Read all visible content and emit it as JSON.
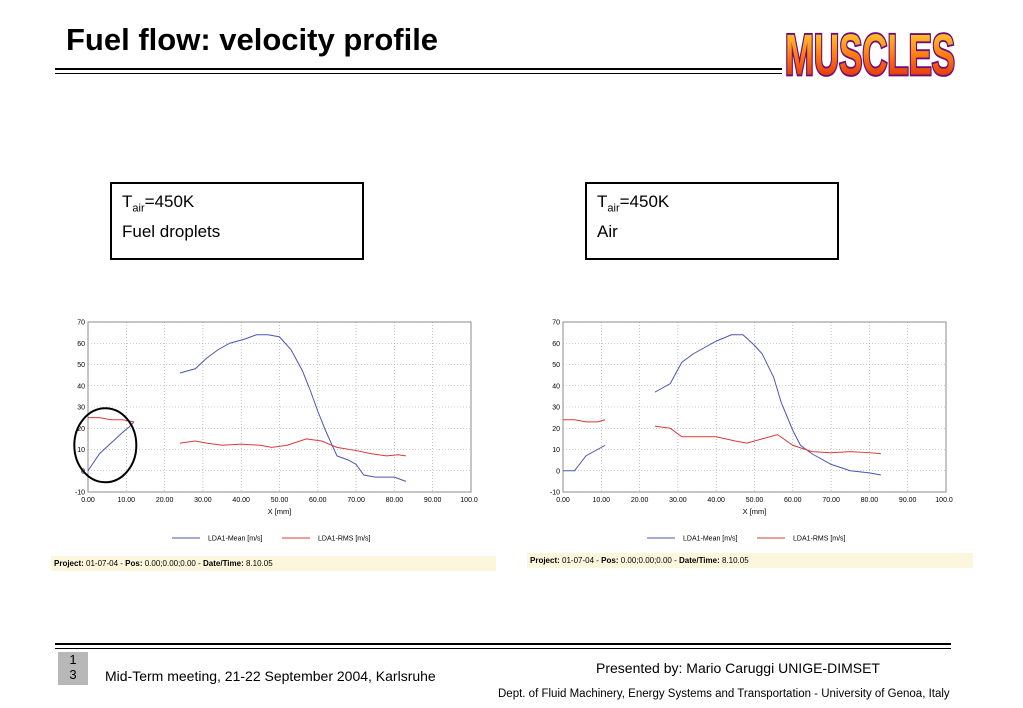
{
  "slide": {
    "title": "Fuel flow: velocity profile",
    "logo_text": "MUSCLES",
    "page_number": "13",
    "footer_left": "Mid-Term meeting, 21-22 September 2004, Karlsruhe",
    "footer_right_1": "Presented by: Mario Caruggi  UNIGE-DIMSET",
    "footer_right_2": "Dept. of Fluid Machinery, Energy Systems and Transportation - University of Genoa, Italy"
  },
  "boxes": [
    {
      "t": "T",
      "sub": "air",
      "val": "=450K",
      "line2": "Fuel droplets"
    },
    {
      "t": "T",
      "sub": "air",
      "val": "=450K",
      "line2": "Air"
    }
  ],
  "project_bars": [
    {
      "project_label": "Project:",
      "project": " 01-07-04 - ",
      "pos_label": "Pos:",
      "pos": " 0.00;0.00;0.00 - ",
      "date_label": "Date/Time:",
      "date": " 8.10.05"
    },
    {
      "project_label": "Project:",
      "project": " 01-07-04 - ",
      "pos_label": "Pos:",
      "pos": " 0.00;0.00;0.00 - ",
      "date_label": "Date/Time:",
      "date": " 8.10.05"
    }
  ],
  "colors": {
    "mean": "#4a55b4",
    "rms": "#d83a3a",
    "grid": "#9a9a9a",
    "circle": "#000000"
  },
  "chart_data": [
    {
      "type": "line",
      "xlabel": "X [mm]",
      "xlim": [
        0,
        100
      ],
      "ylim": [
        -10,
        70
      ],
      "x_ticks": [
        "0.00",
        "10.00",
        "20.00",
        "30.00",
        "40.00",
        "50.00",
        "60.00",
        "70.00",
        "80.00",
        "90.00",
        "100.00"
      ],
      "y_ticks": [
        "-10",
        "0",
        "10",
        "20",
        "30",
        "40",
        "50",
        "60",
        "70"
      ],
      "grid": true,
      "legend_position": "bottom",
      "annotation": "circle around 0-13 mm region",
      "series": [
        {
          "name": "LDA1-Mean [m/s]",
          "segments": [
            [
              [
                0,
                0
              ],
              [
                3,
                8
              ],
              [
                6,
                13
              ],
              [
                9,
                18
              ],
              [
                11,
                21
              ],
              [
                12,
                23
              ]
            ],
            [
              [
                24,
                46
              ],
              [
                28,
                48
              ],
              [
                31,
                53
              ],
              [
                34,
                57
              ],
              [
                37,
                60
              ],
              [
                41,
                62
              ],
              [
                44,
                64
              ],
              [
                47,
                64
              ],
              [
                50,
                63
              ],
              [
                53,
                57
              ],
              [
                56,
                47
              ],
              [
                58,
                38
              ],
              [
                60,
                28
              ],
              [
                62,
                19
              ],
              [
                65,
                7
              ],
              [
                68,
                5
              ],
              [
                70,
                3
              ],
              [
                72,
                -2
              ],
              [
                75,
                -3
              ],
              [
                80,
                -3
              ],
              [
                83,
                -5
              ]
            ]
          ]
        },
        {
          "name": "LDA1-RMS [m/s]",
          "segments": [
            [
              [
                0,
                25
              ],
              [
                3,
                25
              ],
              [
                6,
                24
              ],
              [
                9,
                24
              ],
              [
                12,
                23
              ]
            ],
            [
              [
                24,
                13
              ],
              [
                28,
                14
              ],
              [
                31,
                13
              ],
              [
                35,
                12
              ],
              [
                40,
                12.5
              ],
              [
                45,
                12
              ],
              [
                48,
                11
              ],
              [
                52,
                12
              ],
              [
                57,
                15
              ],
              [
                61,
                14
              ],
              [
                65,
                11
              ],
              [
                70,
                9.5
              ],
              [
                74,
                8
              ],
              [
                78,
                7
              ],
              [
                81,
                7.5
              ],
              [
                83,
                7
              ]
            ]
          ]
        }
      ]
    },
    {
      "type": "line",
      "xlabel": "X [mm]",
      "xlim": [
        0,
        100
      ],
      "ylim": [
        -10,
        70
      ],
      "x_ticks": [
        "0.00",
        "10.00",
        "20.00",
        "30.00",
        "40.00",
        "50.00",
        "60.00",
        "70.00",
        "80.00",
        "90.00",
        "100.00"
      ],
      "y_ticks": [
        "-10",
        "0",
        "10",
        "20",
        "30",
        "40",
        "50",
        "60",
        "70"
      ],
      "grid": true,
      "legend_position": "bottom",
      "series": [
        {
          "name": "LDA1-Mean [m/s]",
          "segments": [
            [
              [
                0,
                0
              ],
              [
                3,
                0
              ],
              [
                6,
                7
              ],
              [
                9,
                10
              ],
              [
                11,
                12
              ]
            ],
            [
              [
                24,
                37
              ],
              [
                28,
                41
              ],
              [
                31,
                51
              ],
              [
                34,
                55
              ],
              [
                37,
                58
              ],
              [
                40,
                61
              ],
              [
                44,
                64
              ],
              [
                47,
                64
              ],
              [
                50,
                59
              ],
              [
                52,
                55
              ],
              [
                55,
                44
              ],
              [
                57,
                32
              ],
              [
                60,
                19
              ],
              [
                62,
                12
              ],
              [
                65,
                8
              ],
              [
                70,
                3
              ],
              [
                75,
                0
              ],
              [
                80,
                -1
              ],
              [
                83,
                -2
              ]
            ]
          ]
        },
        {
          "name": "LDA1-RMS [m/s]",
          "segments": [
            [
              [
                0,
                24
              ],
              [
                3,
                24
              ],
              [
                6,
                23
              ],
              [
                9,
                23
              ],
              [
                11,
                24
              ]
            ],
            [
              [
                24,
                21
              ],
              [
                28,
                20
              ],
              [
                31,
                16
              ],
              [
                35,
                16
              ],
              [
                40,
                16
              ],
              [
                45,
                14
              ],
              [
                48,
                13
              ],
              [
                52,
                15
              ],
              [
                56,
                17
              ],
              [
                60,
                12
              ],
              [
                65,
                9
              ],
              [
                70,
                8.5
              ],
              [
                75,
                9
              ],
              [
                80,
                8.5
              ],
              [
                83,
                8
              ]
            ]
          ]
        }
      ]
    }
  ]
}
